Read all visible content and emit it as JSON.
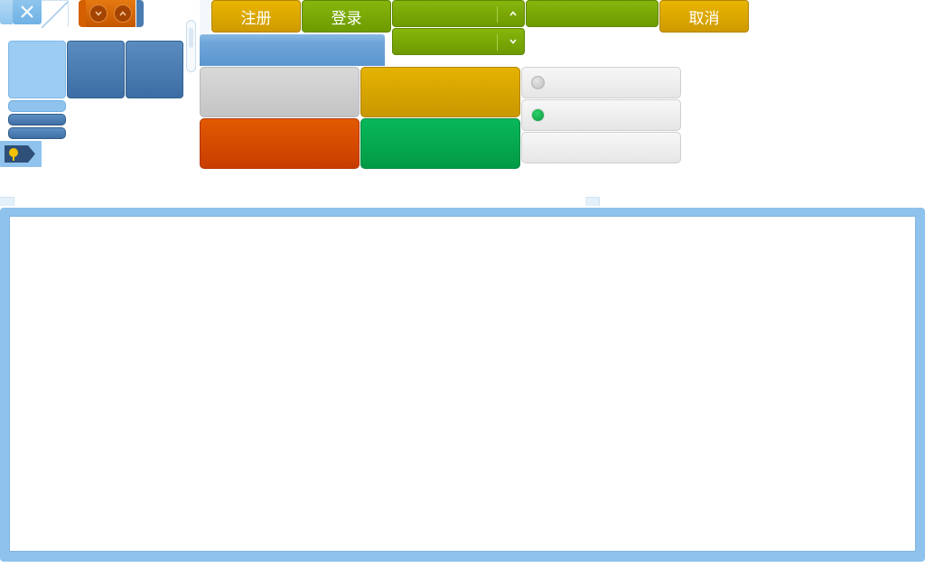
{
  "toolbar": {
    "register_label": "注册",
    "login_label": "登录",
    "cancel_label": "取消"
  },
  "colors": {
    "accent_blue": "#8fc2ec",
    "dark_blue": "#3c6da4",
    "yellow": "#e0ad00",
    "green": "#7aa804",
    "orange": "#d94d00",
    "emerald": "#06ad50",
    "gray": "#cfcfcf"
  },
  "icons": {
    "close": "close-icon",
    "spin_down": "chevron-down-icon",
    "spin_up": "chevron-up-icon",
    "tag": "tag-icon"
  },
  "radios": [
    {
      "state": "unchecked"
    },
    {
      "state": "checked"
    }
  ]
}
